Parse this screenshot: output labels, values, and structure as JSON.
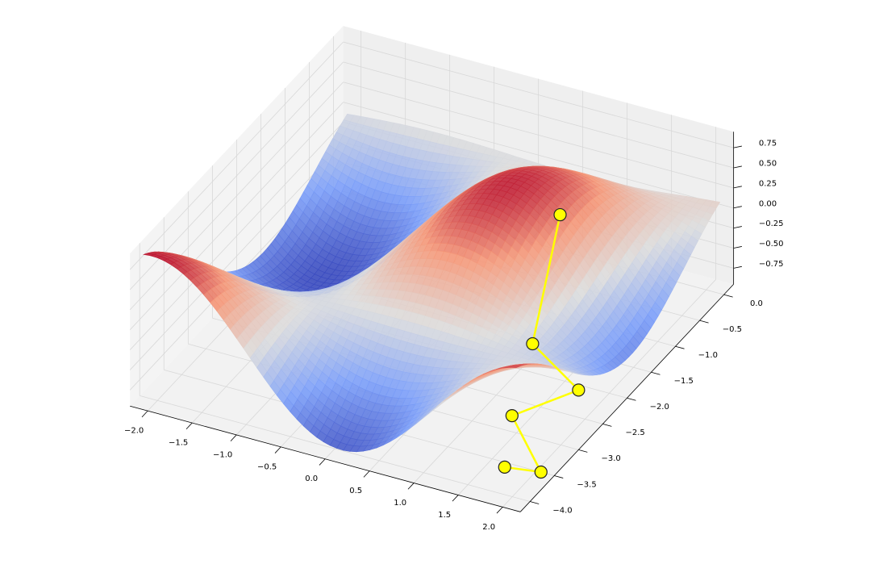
{
  "chart_data": {
    "type": "surface3d",
    "title": "",
    "xlabel": "",
    "ylabel": "",
    "zlabel": "",
    "colormap": "coolwarm",
    "x_ticks": [
      "−2.0",
      "−1.5",
      "−1.0",
      "−0.5",
      "0.0",
      "0.5",
      "1.0",
      "1.5",
      "2.0"
    ],
    "y_ticks": [
      "0.0",
      "−0.5",
      "−1.0",
      "−1.5",
      "−2.0",
      "−2.5",
      "−3.0",
      "−3.5",
      "−4.0"
    ],
    "z_ticks": [
      "0.75",
      "0.50",
      "0.25",
      "0.00",
      "−0.25",
      "−0.50",
      "−0.75"
    ],
    "xlim": [
      -2.2,
      2.2
    ],
    "ylim": [
      -4.2,
      0.2
    ],
    "zlim": [
      -0.95,
      0.95
    ],
    "grid": true,
    "path": {
      "color": "#ffff00",
      "x": [
        0.9,
        1.3,
        1.9,
        1.45,
        2.05,
        1.75
      ],
      "y": [
        -1.0,
        -2.3,
        -2.45,
        -3.0,
        -3.5,
        -3.7
      ],
      "z": [
        0.3,
        -0.35,
        -0.65,
        -0.75,
        -0.95,
        -0.85
      ]
    }
  }
}
